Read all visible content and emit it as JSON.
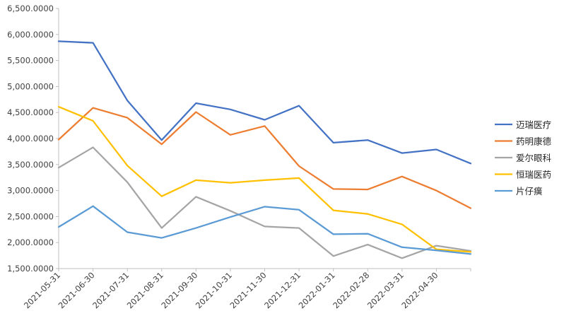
{
  "chart_data": {
    "type": "line",
    "x": [
      "2021-05-31",
      "2021-06-30",
      "2021-07-31",
      "2021-08-31",
      "2021-09-30",
      "2021-10-31",
      "2021-11-30",
      "2021-12-31",
      "2022-01-31",
      "2022-02-28",
      "2022-03-31",
      "2022-04-30",
      ""
    ],
    "x_tick_labels": [
      "2021-05-31",
      "2021-06-30",
      "2021-07-31",
      "2021-08-31",
      "2021-09-30",
      "2021-10-31",
      "2021-11-30",
      "2021-12-31",
      "2022-01-31",
      "2022-02-28",
      "2022-03-31",
      "2022-04-30"
    ],
    "y_ticks": [
      "1,500.0000",
      "2,000.0000",
      "2,500.0000",
      "3,000.0000",
      "3,500.0000",
      "4,000.0000",
      "4,500.0000",
      "5,000.0000",
      "5,500.0000",
      "6,000.0000",
      "6,500.0000"
    ],
    "ylim": [
      1500,
      6500
    ],
    "grid": false,
    "legend": "right",
    "series": [
      {
        "name": "迈瑞医疗",
        "color": "#4472C4",
        "values": [
          5870,
          5840,
          4730,
          3970,
          4680,
          4560,
          4360,
          4630,
          3920,
          3970,
          3720,
          3790,
          3520
        ]
      },
      {
        "name": "药明康德",
        "color": "#ED7D31",
        "values": [
          3980,
          4590,
          4400,
          3890,
          4510,
          4070,
          4240,
          3470,
          3030,
          3020,
          3270,
          3000,
          2660
        ]
      },
      {
        "name": "爱尔眼科",
        "color": "#A5A5A5",
        "values": [
          3440,
          3830,
          3160,
          2280,
          2880,
          2610,
          2310,
          2280,
          1740,
          1960,
          1700,
          1940,
          1840
        ]
      },
      {
        "name": "恒瑞医药",
        "color": "#FFC000",
        "values": [
          4610,
          4340,
          3480,
          2890,
          3200,
          3150,
          3200,
          3240,
          2620,
          2550,
          2350,
          1870,
          1820
        ]
      },
      {
        "name": "片仔癀",
        "color": "#5B9BD5",
        "values": [
          2300,
          2700,
          2200,
          2090,
          2280,
          2490,
          2690,
          2630,
          2160,
          2170,
          1910,
          1850,
          1780
        ]
      }
    ]
  }
}
